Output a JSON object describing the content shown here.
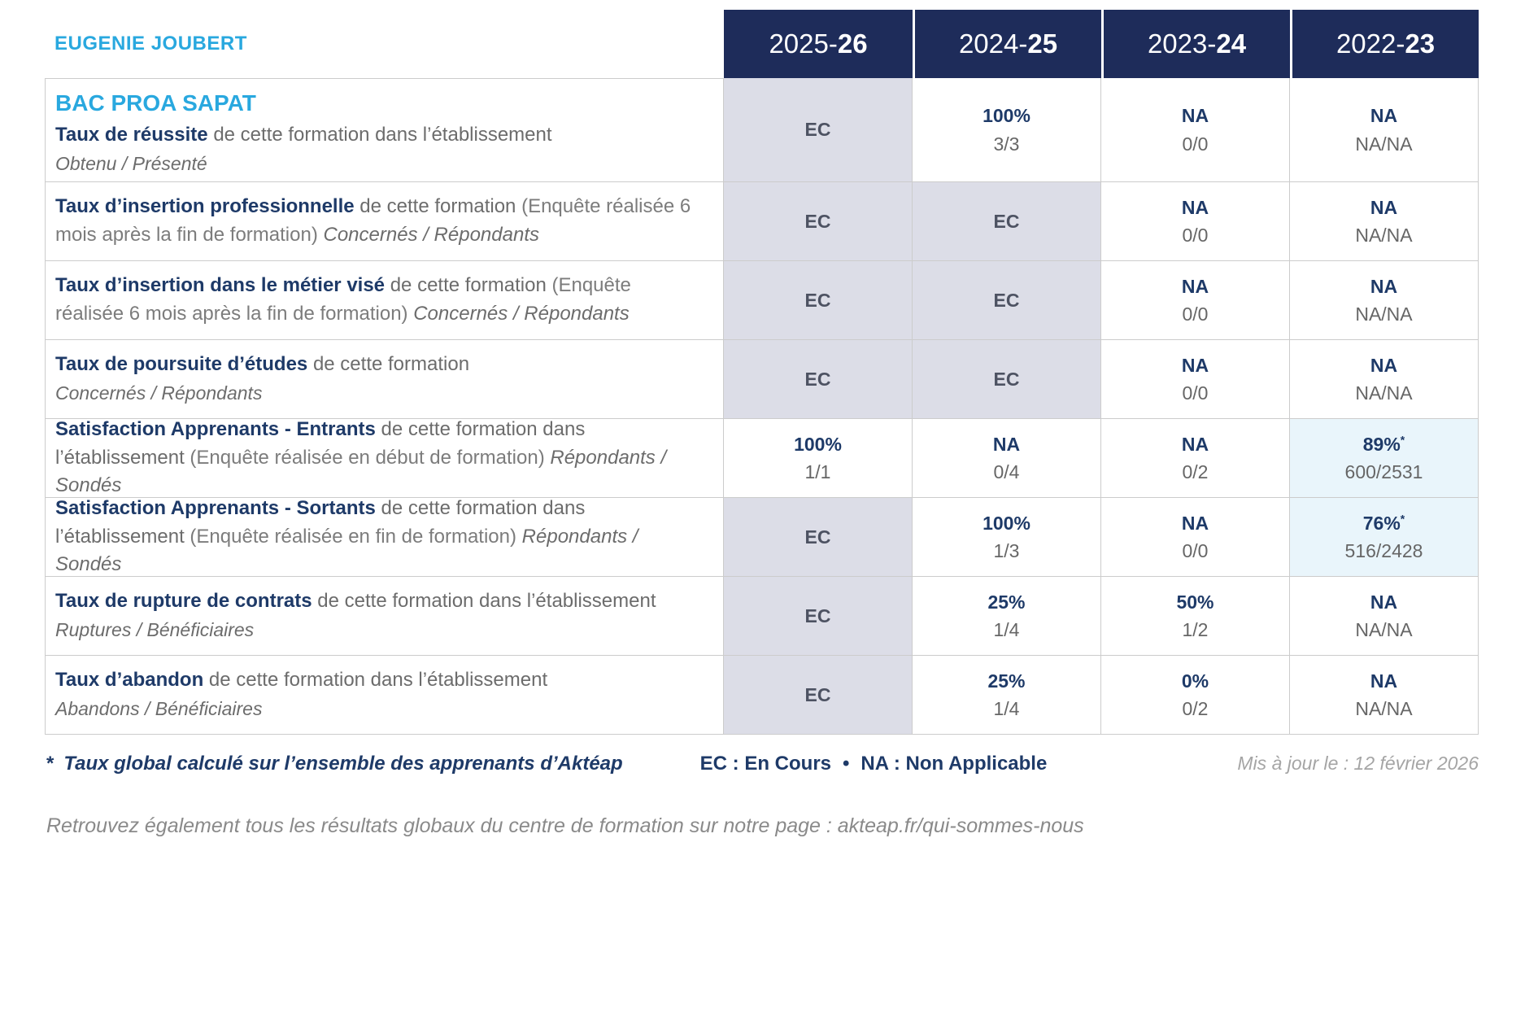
{
  "colors": {
    "header_navy": "#1e2c5a",
    "title_navy": "#1e3a68",
    "accent_cyan": "#29a8df",
    "ec_cell_bg": "#dcdde7",
    "highlight_cell_bg": "#e9f5fb",
    "gray_text": "#6c6c6c"
  },
  "header": {
    "student_name": "EUGENIE JOUBERT",
    "years": [
      {
        "pre": "2025-",
        "bold": "26"
      },
      {
        "pre": "2024-",
        "bold": "25"
      },
      {
        "pre": "2023-",
        "bold": "24"
      },
      {
        "pre": "2022-",
        "bold": "23"
      }
    ]
  },
  "program_title": "BAC PROA SAPAT",
  "rows": [
    {
      "title": "Taux de réussite",
      "text": "de cette formation dans l’établissement",
      "paren": "",
      "tail": "",
      "subtitle": "Obtenu / Présenté",
      "cells": [
        {
          "value": "EC",
          "sub": "",
          "sup": ""
        },
        {
          "value": "100%",
          "sub": "3/3",
          "sup": ""
        },
        {
          "value": "NA",
          "sub": "0/0",
          "sup": ""
        },
        {
          "value": "NA",
          "sub": "NA/NA",
          "sup": ""
        }
      ]
    },
    {
      "title": "Taux d’insertion professionnelle",
      "text": "de cette formation",
      "paren": "(Enquête réalisée 6 mois après la fin de formation)",
      "tail": "Concernés / Répondants",
      "subtitle": "",
      "cells": [
        {
          "value": "EC",
          "sub": "",
          "sup": ""
        },
        {
          "value": "EC",
          "sub": "",
          "sup": ""
        },
        {
          "value": "NA",
          "sub": "0/0",
          "sup": ""
        },
        {
          "value": "NA",
          "sub": "NA/NA",
          "sup": ""
        }
      ]
    },
    {
      "title": "Taux d’insertion dans le métier visé",
      "text": "de cette formation",
      "paren": "(Enquête réalisée 6 mois après la fin de formation)",
      "tail": "Concernés / Répondants",
      "subtitle": "",
      "cells": [
        {
          "value": "EC",
          "sub": "",
          "sup": ""
        },
        {
          "value": "EC",
          "sub": "",
          "sup": ""
        },
        {
          "value": "NA",
          "sub": "0/0",
          "sup": ""
        },
        {
          "value": "NA",
          "sub": "NA/NA",
          "sup": ""
        }
      ]
    },
    {
      "title": "Taux de poursuite d’études",
      "text": "de cette formation",
      "paren": "",
      "tail": "",
      "subtitle": "Concernés / Répondants",
      "cells": [
        {
          "value": "EC",
          "sub": "",
          "sup": ""
        },
        {
          "value": "EC",
          "sub": "",
          "sup": ""
        },
        {
          "value": "NA",
          "sub": "0/0",
          "sup": ""
        },
        {
          "value": "NA",
          "sub": "NA/NA",
          "sup": ""
        }
      ]
    },
    {
      "title": "Satisfaction Apprenants - Entrants",
      "text": "de cette formation dans l’établissement",
      "paren": "(Enquête réalisée en début de formation)",
      "tail": "Répondants / Sondés",
      "subtitle": "",
      "cells": [
        {
          "value": "100%",
          "sub": "1/1",
          "sup": ""
        },
        {
          "value": "NA",
          "sub": "0/4",
          "sup": ""
        },
        {
          "value": "NA",
          "sub": "0/2",
          "sup": ""
        },
        {
          "value": "89%",
          "sub": "600/2531",
          "sup": "*"
        }
      ]
    },
    {
      "title": "Satisfaction Apprenants - Sortants",
      "text": "de cette formation dans l’établissement",
      "paren": "(Enquête réalisée en fin de formation)",
      "tail": "Répondants / Sondés",
      "subtitle": "",
      "cells": [
        {
          "value": "EC",
          "sub": "",
          "sup": ""
        },
        {
          "value": "100%",
          "sub": "1/3",
          "sup": ""
        },
        {
          "value": "NA",
          "sub": "0/0",
          "sup": ""
        },
        {
          "value": "76%",
          "sub": "516/2428",
          "sup": "*"
        }
      ]
    },
    {
      "title": "Taux de rupture de contrats",
      "text": "de cette formation dans l’établissement",
      "paren": "",
      "tail": "",
      "subtitle": "Ruptures / Bénéficiaires",
      "cells": [
        {
          "value": "EC",
          "sub": "",
          "sup": ""
        },
        {
          "value": "25%",
          "sub": "1/4",
          "sup": ""
        },
        {
          "value": "50%",
          "sub": "1/2",
          "sup": ""
        },
        {
          "value": "NA",
          "sub": "NA/NA",
          "sup": ""
        }
      ]
    },
    {
      "title": "Taux d’abandon",
      "text": "de cette formation dans l’établissement",
      "paren": "",
      "tail": "",
      "subtitle": "Abandons / Bénéficiaires",
      "cells": [
        {
          "value": "EC",
          "sub": "",
          "sup": ""
        },
        {
          "value": "25%",
          "sub": "1/4",
          "sup": ""
        },
        {
          "value": "0%",
          "sub": "0/2",
          "sup": ""
        },
        {
          "value": "NA",
          "sub": "NA/NA",
          "sup": ""
        }
      ]
    }
  ],
  "footer": {
    "star": "*",
    "note": "Taux global calculé sur l’ensemble des apprenants d’Aktéap",
    "legend_ec": "EC : En Cours",
    "legend_sep": "•",
    "legend_na": "NA : Non Applicable",
    "updated": "Mis à jour le : 12 février 2026"
  },
  "bottom_text": "Retrouvez également tous les résultats globaux du centre de formation sur notre page : akteap.fr/qui-sommes-nous"
}
